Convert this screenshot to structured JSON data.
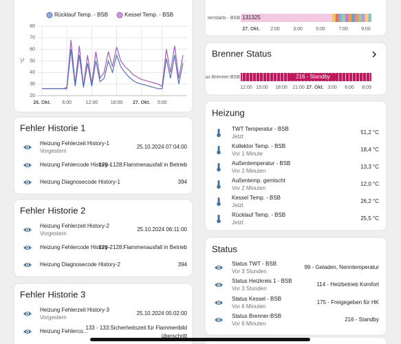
{
  "chart_data": {
    "type": "line",
    "y_label": "°C",
    "x": [
      0,
      1,
      2,
      3,
      4,
      5,
      6,
      7,
      8,
      9,
      10,
      11,
      12,
      13,
      14,
      15,
      16,
      17,
      18,
      19,
      20,
      21,
      22,
      23,
      24,
      25,
      26,
      27,
      28,
      29,
      30,
      31,
      32,
      33,
      34
    ],
    "series": [
      {
        "name": "Rücklauf Temp. - BSB",
        "color": "#4f72b8",
        "values": [
          26,
          26,
          26,
          26,
          26,
          26,
          26,
          60,
          28,
          55,
          27,
          48,
          28,
          50,
          32,
          35,
          50,
          40,
          55,
          45,
          40,
          36,
          33,
          31,
          30,
          29,
          28,
          27,
          26,
          26,
          52,
          35,
          55,
          30,
          48
        ]
      },
      {
        "name": "Kessel Temp. - BSB",
        "color": "#a05cb8",
        "values": [
          26,
          26,
          26,
          26,
          26,
          26,
          27,
          68,
          30,
          63,
          28,
          55,
          30,
          58,
          35,
          40,
          58,
          45,
          62,
          50,
          45,
          42,
          38,
          36,
          34,
          33,
          32,
          31,
          30,
          28,
          60,
          40,
          63,
          35,
          55
        ]
      }
    ],
    "xlim": [
      -1,
      35
    ],
    "xticks": [
      {
        "value": 0,
        "label": "26. Okt."
      },
      {
        "value": 6,
        "label": "6:00"
      },
      {
        "value": 12,
        "label": "12:00"
      },
      {
        "value": 18,
        "label": "18:00"
      },
      {
        "value": 24,
        "label": "27. Okt."
      },
      {
        "value": 29,
        "label": "5:00"
      }
    ],
    "ylim": [
      20,
      80
    ],
    "yticks": [
      80,
      70,
      60,
      50,
      40,
      30,
      20
    ],
    "grid": true
  },
  "brennerstarts": {
    "label": "nerstarts - BSB",
    "value": "131325",
    "times": [
      "27. Okt.",
      "2:00",
      "3:00",
      "5:00",
      "7:00",
      "9:00"
    ]
  },
  "brenner_status": {
    "title": "Brenner Status",
    "label": "us Brenner-BSB",
    "state": "216 - Standby",
    "times": [
      "12:00",
      "15:00",
      "18:00",
      "21:00",
      "27. Okt.",
      "3:00",
      "6:00",
      "8:09"
    ]
  },
  "fehler_historie": [
    {
      "title": "Fehler Historie 1",
      "rows": [
        {
          "name": "Heizung Fehlerzeit History-1",
          "sub": "Vorgestern",
          "value": "25.10.2024 07:04:00"
        },
        {
          "name": "Heizung Fehlercode History-1",
          "value": "128 - 128:Flammenausfall in Betrieb"
        },
        {
          "name": "Heizung Diagnosecode History-1",
          "value": "394"
        }
      ]
    },
    {
      "title": "Fehler Historie 2",
      "rows": [
        {
          "name": "Heizung Fehlerzeit History-2",
          "sub": "Vorgestern",
          "value": "25.10.2024 06:11:00"
        },
        {
          "name": "Heizung Fehlercode History-2",
          "value": "128 - 128:Flammenausfall in Betrieb"
        },
        {
          "name": "Heizung Diagnosecode History-2",
          "value": "394"
        }
      ]
    },
    {
      "title": "Fehler Historie 3",
      "rows": [
        {
          "name": "Heizung Fehlerzeit History-3",
          "sub": "Vorgestern",
          "value": "25.10.2024 05:02:00"
        },
        {
          "name": "Heizung Fehlerco...",
          "value": [
            "133 - 133:Sicherheitszeit für Flammenbild",
            "überschritt"
          ]
        }
      ]
    }
  ],
  "heizung": {
    "title": "Heizung",
    "rows": [
      {
        "name": "TWT Temperatur - BSB",
        "sub": "Jetzt",
        "value": "51,2 °C"
      },
      {
        "name": "Kollektor Temp. - BSB",
        "sub": "Vor 1 Minute",
        "value": "18,4 °C"
      },
      {
        "name": "Außentemperatur - BSB",
        "sub": "Vor 2 Minuten",
        "value": "13,3 °C"
      },
      {
        "name": "Außentemp. gemischt",
        "sub": "Vor 2 Minuten",
        "value": "12,0 °C"
      },
      {
        "name": "Kessel Temp. - BSB",
        "sub": "Jetzt",
        "value": "26,2 °C"
      },
      {
        "name": "Rücklauf Temp. - BSB",
        "sub": "Jetzt",
        "value": "25,5 °C"
      }
    ]
  },
  "status": {
    "title": "Status",
    "rows": [
      {
        "name": "Status TWT - BSB",
        "sub": "Vor 3 Stunden",
        "value": "99 - Geladen, Nenntemperatur"
      },
      {
        "name": "Status Heizkreis 1 - BSB",
        "sub": "Vor 3 Stunden",
        "value": "114 - Heizbetrieb Komfort"
      },
      {
        "name": "Status Kessel - BSB",
        "sub": "Vor 6 Minuten",
        "value": "175 - Freigegeben für HK"
      },
      {
        "name": "Status Brenner-BSB",
        "sub": "Vor 6 Minuten",
        "value": "216 - Standby"
      }
    ]
  }
}
